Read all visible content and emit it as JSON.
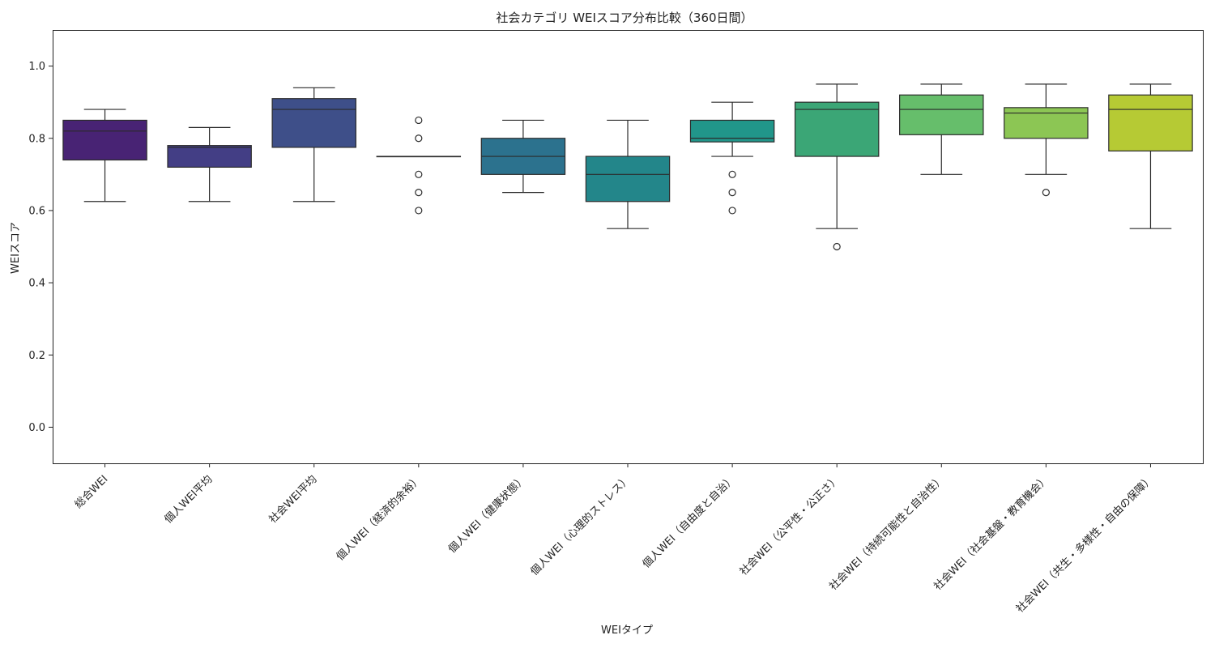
{
  "chart_data": {
    "type": "box",
    "title": "社会カテゴリ WEIスコア分布比較（360日間）",
    "xlabel": "WEIタイプ",
    "ylabel": "WEIスコア",
    "ylim": [
      -0.1,
      1.1
    ],
    "yticks": [
      "0.0",
      "0.2",
      "0.4",
      "0.6",
      "0.8",
      "1.0"
    ],
    "grid": false,
    "categories": [
      "総合WEI",
      "個人WEI平均",
      "社会WEI平均",
      "個人WEI（経済的余裕）",
      "個人WEI（健康状態）",
      "個人WEI（心理的ストレス）",
      "個人WEI（自由度と自治）",
      "社会WEI（公平性・公正さ）",
      "社会WEI（持続可能性と自治性）",
      "社会WEI（社会基盤・教育機会）",
      "社会WEI（共生・多様性・自由の保障）"
    ],
    "boxes": [
      {
        "whisker_low": 0.625,
        "q1": 0.74,
        "median": 0.82,
        "q3": 0.85,
        "whisker_high": 0.88,
        "outliers": [],
        "color": "#482374"
      },
      {
        "whisker_low": 0.625,
        "q1": 0.72,
        "median": 0.775,
        "q3": 0.78,
        "whisker_high": 0.83,
        "outliers": [],
        "color": "#433e85"
      },
      {
        "whisker_low": 0.625,
        "q1": 0.775,
        "median": 0.88,
        "q3": 0.91,
        "whisker_high": 0.94,
        "outliers": [],
        "color": "#3e4f89"
      },
      {
        "whisker_low": 0.75,
        "q1": 0.75,
        "median": 0.75,
        "q3": 0.75,
        "whisker_high": 0.75,
        "outliers": [
          0.85,
          0.8,
          0.7,
          0.65,
          0.6
        ],
        "color": "#30668e"
      },
      {
        "whisker_low": 0.65,
        "q1": 0.7,
        "median": 0.75,
        "q3": 0.8,
        "whisker_high": 0.85,
        "outliers": [],
        "color": "#2c728e"
      },
      {
        "whisker_low": 0.55,
        "q1": 0.625,
        "median": 0.7,
        "q3": 0.75,
        "whisker_high": 0.85,
        "outliers": [],
        "color": "#23868a"
      },
      {
        "whisker_low": 0.75,
        "q1": 0.79,
        "median": 0.8,
        "q3": 0.85,
        "whisker_high": 0.9,
        "outliers": [
          0.7,
          0.65,
          0.6
        ],
        "color": "#21968a"
      },
      {
        "whisker_low": 0.55,
        "q1": 0.75,
        "median": 0.88,
        "q3": 0.9,
        "whisker_high": 0.95,
        "outliers": [
          0.5
        ],
        "color": "#3ba676"
      },
      {
        "whisker_low": 0.7,
        "q1": 0.81,
        "median": 0.88,
        "q3": 0.92,
        "whisker_high": 0.95,
        "outliers": [],
        "color": "#66be6b"
      },
      {
        "whisker_low": 0.7,
        "q1": 0.8,
        "median": 0.87,
        "q3": 0.885,
        "whisker_high": 0.95,
        "outliers": [
          0.65
        ],
        "color": "#8cc654"
      },
      {
        "whisker_low": 0.55,
        "q1": 0.765,
        "median": 0.88,
        "q3": 0.92,
        "whisker_high": 0.95,
        "outliers": [],
        "color": "#b6ca34"
      }
    ]
  }
}
